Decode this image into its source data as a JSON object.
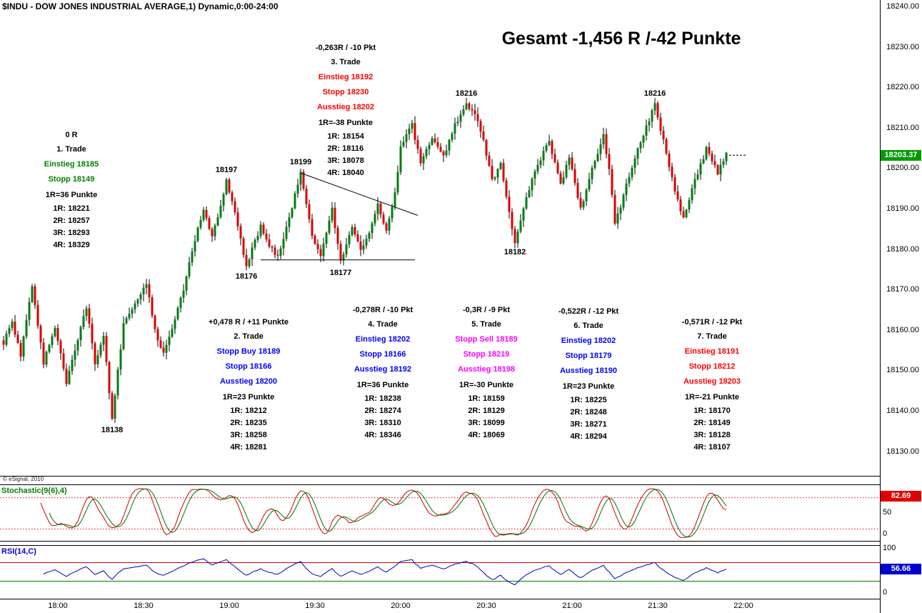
{
  "window": {
    "symbol_header": "$INDU - DOW JONES INDUSTRIAL AVERAGE,1) Dynamic,0:00-24:00",
    "copyright": "© eSignal, 2010"
  },
  "title": "Gesamt -1,456 R /-42 Punkte",
  "price_axis": {
    "badge": "18203.37",
    "badge_color": "#009b00"
  },
  "panes": {
    "stochastic": {
      "label": "Stochastic(9(6),4)",
      "label_color": "#008000",
      "badge": "82.69",
      "badge_color": "#e00000",
      "ticks": [
        "50",
        "0"
      ]
    },
    "rsi": {
      "label": "RSI(14,C)",
      "label_color": "#0000cc",
      "badge": "56.66",
      "badge_color": "#0000d0",
      "ticks": [
        "100",
        "0"
      ]
    }
  },
  "trades": [
    {
      "result": "0 R",
      "name": "1. Trade",
      "color": "#008000",
      "actions": [
        "Einstieg 18185",
        "Stopp 18149"
      ],
      "r_points": "1R=36 Punkte",
      "levels": [
        "1R: 18221",
        "2R: 18257",
        "3R: 18293",
        "4R: 18329"
      ]
    },
    {
      "result": "+0,478 R / +11 Punkte",
      "name": "2. Trade",
      "color": "#0000ff",
      "actions": [
        "Stopp Buy 18189",
        "Stopp 18166",
        "Ausstieg 18200"
      ],
      "r_points": "1R=23 Punkte",
      "levels": [
        "1R: 18212",
        "2R: 18235",
        "3R: 18258",
        "4R: 18281"
      ]
    },
    {
      "result": "-0,263R / -10 Pkt",
      "name": "3. Trade",
      "color": "#ff0000",
      "actions": [
        "Einstieg 18192",
        "Stopp 18230",
        "Ausstieg 18202"
      ],
      "r_points": "1R=-38 Punkte",
      "levels": [
        "1R: 18154",
        "2R: 18116",
        "3R: 18078",
        "4R: 18040"
      ]
    },
    {
      "result": "-0,278R / -10 Pkt",
      "name": "4. Trade",
      "color": "#0000ff",
      "actions": [
        "Einstieg 18202",
        "Stopp 18166",
        "Ausstieg 18192"
      ],
      "r_points": "1R=36 Punkte",
      "levels": [
        "1R: 18238",
        "2R: 18274",
        "3R: 18310",
        "4R: 18346"
      ]
    },
    {
      "result": "-0,3R / -9 Pkt",
      "name": "5. Trade",
      "color": "#ff00ff",
      "actions": [
        "Stopp Sell 18189",
        "Stopp 18219",
        "Ausstieg 18198"
      ],
      "r_points": "1R=-30 Punkte",
      "levels": [
        "1R: 18159",
        "2R: 18129",
        "3R: 18099",
        "4R: 18069"
      ]
    },
    {
      "result": "-0,522R / -12 Pkt",
      "name": "6. Trade",
      "color": "#0000ff",
      "actions": [
        "Einstieg 18202",
        "Stopp 18179",
        "Ausstieg 18190"
      ],
      "r_points": "1R=23 Punkte",
      "levels": [
        "1R: 18225",
        "2R: 18248",
        "3R: 18271",
        "4R: 18294"
      ]
    },
    {
      "result": "-0,571R / -12 Pkt",
      "name": "7. Trade",
      "color": "#ff0000",
      "actions": [
        "Einstieg 18191",
        "Stopp 18212",
        "Ausstieg 18203"
      ],
      "r_points": "1R=-21 Punkte",
      "levels": [
        "1R: 18170",
        "2R: 18149",
        "3R: 18128",
        "4R: 18107"
      ]
    }
  ],
  "chart_data": {
    "type": "candlestick",
    "symbol": "$INDU",
    "description": "DOW JONES INDUSTRIAL AVERAGE",
    "interval_minutes": 1,
    "session": "Dynamic,0:00-24:00",
    "title": "Gesamt -1,456 R /-42 Punkte",
    "last_price": 18203.37,
    "x_axis": {
      "start_time": "17:41",
      "tick_minutes_from_start": [
        19,
        49,
        79,
        109,
        139,
        169,
        199,
        229,
        259
      ],
      "tick_labels": [
        "18:00",
        "18:30",
        "19:00",
        "19:30",
        "20:00",
        "20:30",
        "21:00",
        "21:30",
        "22:00"
      ]
    },
    "y_axis": {
      "tick_step": 10,
      "tick_labels": [
        "18240.00",
        "18230.00",
        "18220.00",
        "18210.00",
        "18200.00",
        "18190.00",
        "18180.00",
        "18170.00",
        "18160.00",
        "18150.00",
        "18140.00",
        "18130.00"
      ]
    },
    "price_waypoints": [
      [
        0,
        18157
      ],
      [
        3,
        18162
      ],
      [
        6,
        18154
      ],
      [
        10,
        18171
      ],
      [
        14,
        18152
      ],
      [
        18,
        18161
      ],
      [
        22,
        18147
      ],
      [
        26,
        18158
      ],
      [
        29,
        18166
      ],
      [
        32,
        18152
      ],
      [
        35,
        18159
      ],
      [
        38,
        18138
      ],
      [
        42,
        18162
      ],
      [
        46,
        18167
      ],
      [
        50,
        18172
      ],
      [
        53,
        18160
      ],
      [
        56,
        18154
      ],
      [
        60,
        18163
      ],
      [
        63,
        18170
      ],
      [
        66,
        18180
      ],
      [
        70,
        18190
      ],
      [
        73,
        18183
      ],
      [
        78,
        18197
      ],
      [
        81,
        18189
      ],
      [
        85,
        18176
      ],
      [
        90,
        18186
      ],
      [
        93,
        18181
      ],
      [
        96,
        18178
      ],
      [
        100,
        18188
      ],
      [
        104,
        18199
      ],
      [
        108,
        18183
      ],
      [
        111,
        18179
      ],
      [
        115,
        18190
      ],
      [
        118,
        18177
      ],
      [
        122,
        18186
      ],
      [
        125,
        18180
      ],
      [
        128,
        18184
      ],
      [
        131,
        18191
      ],
      [
        134,
        18185
      ],
      [
        137,
        18194
      ],
      [
        139,
        18205
      ],
      [
        143,
        18211
      ],
      [
        146,
        18201
      ],
      [
        150,
        18208
      ],
      [
        154,
        18203
      ],
      [
        158,
        18211
      ],
      [
        162,
        18216
      ],
      [
        165,
        18214
      ],
      [
        168,
        18207
      ],
      [
        171,
        18197
      ],
      [
        174,
        18201
      ],
      [
        177,
        18189
      ],
      [
        179,
        18182
      ],
      [
        183,
        18193
      ],
      [
        187,
        18201
      ],
      [
        191,
        18207
      ],
      [
        195,
        18196
      ],
      [
        198,
        18203
      ],
      [
        202,
        18190
      ],
      [
        206,
        18200
      ],
      [
        210,
        18208
      ],
      [
        212,
        18200
      ],
      [
        214,
        18186
      ],
      [
        218,
        18196
      ],
      [
        222,
        18205
      ],
      [
        226,
        18212
      ],
      [
        228,
        18216
      ],
      [
        232,
        18204
      ],
      [
        236,
        18192
      ],
      [
        238,
        18188
      ],
      [
        242,
        18197
      ],
      [
        246,
        18205
      ],
      [
        250,
        18199
      ],
      [
        253,
        18203.4
      ]
    ],
    "swing_labels": [
      {
        "text": "18138",
        "minute": 38,
        "price": 18138,
        "pos": "below"
      },
      {
        "text": "18197",
        "minute": 78,
        "price": 18197,
        "pos": "above"
      },
      {
        "text": "18176",
        "minute": 85,
        "price": 18176,
        "pos": "below"
      },
      {
        "text": "18199",
        "minute": 104,
        "price": 18199,
        "pos": "above"
      },
      {
        "text": "18177",
        "minute": 118,
        "price": 18177,
        "pos": "below"
      },
      {
        "text": "18216",
        "minute": 162,
        "price": 18216,
        "pos": "above"
      },
      {
        "text": "18182",
        "minute": 179,
        "price": 18182,
        "pos": "below"
      },
      {
        "text": "18216",
        "minute": 228,
        "price": 18216,
        "pos": "above"
      }
    ],
    "trendlines": [
      {
        "from_minute": 104,
        "from_price": 18199,
        "to_minute": 145,
        "to_price": 18188.5
      },
      {
        "from_minute": 90,
        "from_price": 18177.5,
        "to_minute": 144,
        "to_price": 18177.5
      }
    ],
    "last_price_line": {
      "price": 18203.37,
      "from_minute": 254,
      "to_minute": 260
    },
    "indicators": [
      {
        "name": "Stochastic(9(6),4)",
        "type": "stochastic",
        "period": 9,
        "smooth": 6,
        "signal": 4,
        "last_value": 82.69,
        "bands": [
          80,
          20
        ],
        "k_color": "#cc0000",
        "d_color": "#007000"
      },
      {
        "name": "RSI(14,C)",
        "type": "rsi",
        "period": 14,
        "source": "C",
        "last_value": 56.66,
        "bands": [
          70,
          30
        ],
        "color": "#0000bb"
      }
    ]
  }
}
